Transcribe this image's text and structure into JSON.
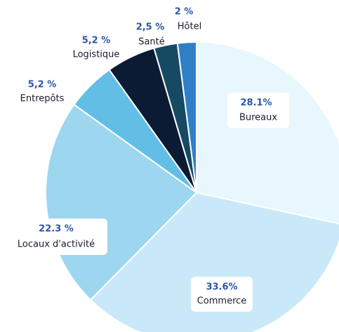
{
  "chart_data": {
    "type": "pie",
    "categories": [
      "Bureaux",
      "Commerce",
      "Locaux d'activité",
      "Entrepôts",
      "Logistique",
      "Santé",
      "Hôtel"
    ],
    "values": [
      28.1,
      33.6,
      22.3,
      5.2,
      5.2,
      2.5,
      2
    ],
    "value_labels": [
      "28.1%",
      "33.6%",
      "22.3 %",
      "5,2 %",
      "5,2 %",
      "2,5 %",
      "2 %"
    ],
    "colors": [
      "#e8f6fd",
      "#c9e9f8",
      "#9dd6ef",
      "#63bee6",
      "#0b1b33",
      "#164a63",
      "#2f7fc8"
    ]
  }
}
